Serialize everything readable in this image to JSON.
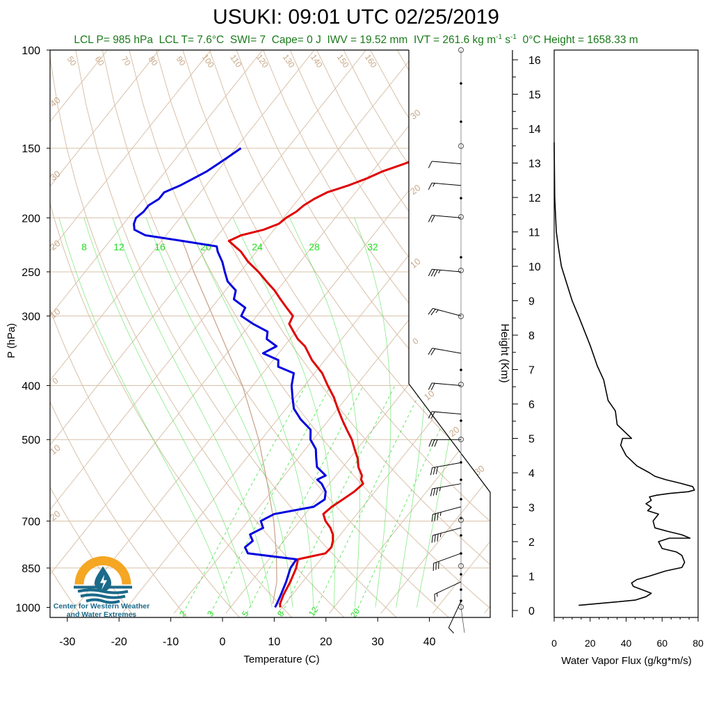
{
  "header": {
    "title": "USUKI: 09:01 UTC 02/25/2019",
    "stats": {
      "lcl_p": "LCL P= 985 hPa",
      "lcl_t": "LCL T= 7.6°C",
      "swi": "SWI= 7",
      "cape": "Cape= 0 J",
      "iwv": "IWV = 19.52 mm",
      "ivt": "IVT = 261.6 kg m",
      "ivt_exp1": "-1",
      "ivt_s": " s",
      "ivt_exp2": "-1",
      "zero_height": "0°C Height = 1658.33 m"
    }
  },
  "logo": {
    "caption_line1": "Center for Western Weather",
    "caption_line2": "and Water Extremes"
  },
  "colors": {
    "temperature": "#e00000",
    "dewpoint": "#0000e0",
    "isotherm": "#d8c0a8",
    "dry_adiabat": "#d8c0a8",
    "moist_adiabat": "#33dd33",
    "mixing_ratio": "#33dd33",
    "parcel": "#c8a088",
    "label_tan": "#c8a888",
    "label_green": "#22dd22",
    "logo_orange": "#f5a623",
    "logo_teal": "#1b6a8a"
  },
  "chart_data": [
    {
      "type": "line",
      "chart": "skew-t log-p",
      "xlabel": "Temperature (C)",
      "ylabel": "P (hPa)",
      "xlim": [
        -34,
        52
      ],
      "ylim": [
        1025,
        100
      ],
      "y_scale": "log",
      "x_ticks": [
        -30,
        -20,
        -10,
        0,
        10,
        20,
        30,
        40
      ],
      "x_tick_labels": [
        "-30",
        "-20",
        "-10",
        "0",
        "10",
        "20",
        "30",
        "40"
      ],
      "y_ticks": [
        100,
        150,
        200,
        250,
        300,
        400,
        500,
        700,
        850,
        1000
      ],
      "y_tick_labels": [
        "100",
        "150",
        "200",
        "250",
        "300",
        "400",
        "500",
        "700",
        "850",
        "1000"
      ],
      "isotherm_labels": [
        {
          "t": 30,
          "label": "30"
        },
        {
          "t": 20,
          "label": "20"
        },
        {
          "t": 10,
          "label": "10"
        },
        {
          "t": 0,
          "label": "0"
        },
        {
          "t": -10,
          "label": "-10"
        },
        {
          "t": -20,
          "label": "-20"
        },
        {
          "t": -30,
          "label": "30"
        },
        {
          "t": -40,
          "label": "20"
        },
        {
          "t": -50,
          "label": "10"
        },
        {
          "t": -60,
          "label": "0"
        },
        {
          "t": -70,
          "label": "10"
        },
        {
          "t": -80,
          "label": "20"
        },
        {
          "t": -90,
          "label": "30"
        },
        {
          "t": -100,
          "label": "40"
        }
      ],
      "dry_adiabat_labels": [
        "50",
        "60",
        "70",
        "80",
        "90",
        "100",
        "110",
        "120",
        "130",
        "140",
        "150",
        "160"
      ],
      "moist_adiabat_labels": [
        "8",
        "12",
        "16",
        "20",
        "24",
        "28",
        "32"
      ],
      "mixing_ratio_labels": [
        "2",
        "3",
        "5",
        "8",
        "12",
        "20"
      ],
      "mixing_ratio_values": [
        2,
        3,
        5,
        8,
        12,
        20
      ],
      "series": [
        {
          "role": "temperature",
          "p": [
            1000,
            985,
            950,
            900,
            850,
            820,
            800,
            780,
            760,
            740,
            720,
            700,
            680,
            660,
            640,
            620,
            600,
            590,
            580,
            560,
            540,
            520,
            500,
            480,
            460,
            440,
            420,
            400,
            380,
            360,
            340,
            330,
            320,
            310,
            300,
            290,
            280,
            270,
            260,
            250,
            240,
            230,
            225,
            220,
            215,
            210,
            205,
            200,
            195,
            190,
            185,
            180,
            175,
            170,
            165,
            160,
            155,
            150
          ],
          "t": [
            9.6,
            9.0,
            8.3,
            7.6,
            6.6,
            5.6,
            10.0,
            10.2,
            9.5,
            8.5,
            7.0,
            5.0,
            3.5,
            4.0,
            5.0,
            6.0,
            6.5,
            5.5,
            5.0,
            3.0,
            1.5,
            -0.5,
            -2.5,
            -5.0,
            -7.5,
            -10.0,
            -12.5,
            -15.5,
            -18.5,
            -22.5,
            -26.0,
            -28.5,
            -30.5,
            -32.5,
            -33.0,
            -35.5,
            -38.0,
            -40.5,
            -43.5,
            -46.5,
            -50.0,
            -53.0,
            -55.0,
            -57.0,
            -55.5,
            -52.0,
            -50.0,
            -49.5,
            -48.5,
            -48.0,
            -47.0,
            -45.5,
            -42.5,
            -40.0,
            -38.0,
            -35.0,
            -32.5,
            -31.0
          ]
        },
        {
          "role": "dewpoint",
          "p": [
            1000,
            985,
            950,
            900,
            850,
            820,
            800,
            780,
            760,
            740,
            720,
            700,
            680,
            660,
            640,
            620,
            600,
            590,
            580,
            560,
            540,
            520,
            500,
            480,
            460,
            440,
            420,
            400,
            380,
            370,
            360,
            350,
            340,
            330,
            320,
            310,
            300,
            290,
            280,
            270,
            260,
            250,
            240,
            230,
            225,
            220,
            215,
            210,
            205,
            200,
            195,
            190,
            185,
            180,
            175,
            170,
            165,
            160,
            155,
            150
          ],
          "t": [
            8.6,
            8.4,
            7.8,
            6.8,
            5.5,
            5.3,
            -5.0,
            -6.5,
            -6.0,
            -7.5,
            -6.0,
            -7.5,
            -6.0,
            0.5,
            1.5,
            0.5,
            -1.5,
            -3.0,
            -2.0,
            -5.0,
            -6.5,
            -8.0,
            -10.5,
            -12.0,
            -15.5,
            -18.5,
            -20.5,
            -22.5,
            -24.0,
            -28.0,
            -29.0,
            -33.0,
            -31.5,
            -34.5,
            -35.5,
            -39.5,
            -43.0,
            -43.5,
            -47.0,
            -48.0,
            -51.0,
            -53.0,
            -55.0,
            -57.5,
            -58.5,
            -66.0,
            -74.0,
            -77.0,
            -78.0,
            -78.5,
            -78.0,
            -78.0,
            -77.0,
            -77.0,
            -75.0,
            -73.5,
            -72.0,
            -71.0,
            -70.0,
            -69.0
          ]
        },
        {
          "role": "parcel",
          "p": [
            985,
            900,
            800,
            700,
            600,
            500,
            400,
            300,
            250,
            230,
            220
          ],
          "t": [
            7.6,
            5.0,
            0.5,
            -5.0,
            -12.0,
            -20.5,
            -32.0,
            -48.5,
            -59.0,
            -63.5,
            -66.0
          ]
        }
      ]
    },
    {
      "type": "wind_barbs",
      "p": [
        975,
        900,
        800,
        720,
        660,
        600,
        550,
        500,
        450,
        400,
        350,
        300,
        250,
        200,
        175,
        160
      ],
      "speed_kt": [
        10,
        15,
        30,
        35,
        35,
        35,
        30,
        30,
        20,
        20,
        20,
        25,
        35,
        20,
        15,
        10
      ],
      "direction_deg": [
        205,
        245,
        250,
        255,
        255,
        260,
        260,
        270,
        275,
        275,
        280,
        285,
        275,
        275,
        275,
        275
      ]
    },
    {
      "type": "line",
      "xlabel": "Water Vapor Flux (g/kg*m/s)",
      "ylabel": "Height (Km)",
      "xlim": [
        0,
        80
      ],
      "ylim": [
        0,
        16.5
      ],
      "x_ticks": [
        0,
        20,
        40,
        60,
        80
      ],
      "x_tick_labels": [
        "0",
        "20",
        "40",
        "60",
        "80"
      ],
      "y_ticks": [
        0,
        1,
        2,
        3,
        4,
        5,
        6,
        7,
        8,
        9,
        10,
        11,
        12,
        13,
        14,
        15,
        16
      ],
      "y_tick_labels": [
        "0",
        "1",
        "2",
        "3",
        "4",
        "5",
        "6",
        "7",
        "8",
        "9",
        "10",
        "11",
        "12",
        "13",
        "14",
        "15",
        "16"
      ],
      "x": [
        13.6,
        35.0,
        45.0,
        51.0,
        54.0,
        49.0,
        44.0,
        43.0,
        46.0,
        53.0,
        62.0,
        71.0,
        72.5,
        71.0,
        68.0,
        60.0,
        58.0,
        64.0,
        75.5,
        71.0,
        63.0,
        56.0,
        55.0,
        58.0,
        52.0,
        54.0,
        51.0,
        54.0,
        53.0,
        57.0,
        64.0,
        74.5,
        78.0,
        77.0,
        70.0,
        62.0,
        56.0,
        53.0,
        46.0,
        40.0,
        37.0,
        38.0,
        43.0,
        39.0,
        35.0,
        34.0,
        30.0,
        27.5,
        24.0,
        20.0,
        14.0,
        10.0,
        7.0,
        4.0,
        2.5,
        1.2,
        0.3,
        0.0
      ],
      "y": [
        0.15,
        0.25,
        0.3,
        0.4,
        0.5,
        0.6,
        0.7,
        0.8,
        0.9,
        1.0,
        1.15,
        1.25,
        1.4,
        1.6,
        1.7,
        1.8,
        2.0,
        2.1,
        2.1,
        2.2,
        2.3,
        2.4,
        2.6,
        2.8,
        2.9,
        3.0,
        3.1,
        3.2,
        3.3,
        3.35,
        3.4,
        3.45,
        3.5,
        3.6,
        3.7,
        3.8,
        3.9,
        4.0,
        4.2,
        4.5,
        4.8,
        5.0,
        5.0,
        5.2,
        5.4,
        5.8,
        6.1,
        6.7,
        7.1,
        7.7,
        8.5,
        9.0,
        9.5,
        10.0,
        10.5,
        11.0,
        12.0,
        13.6
      ]
    }
  ]
}
